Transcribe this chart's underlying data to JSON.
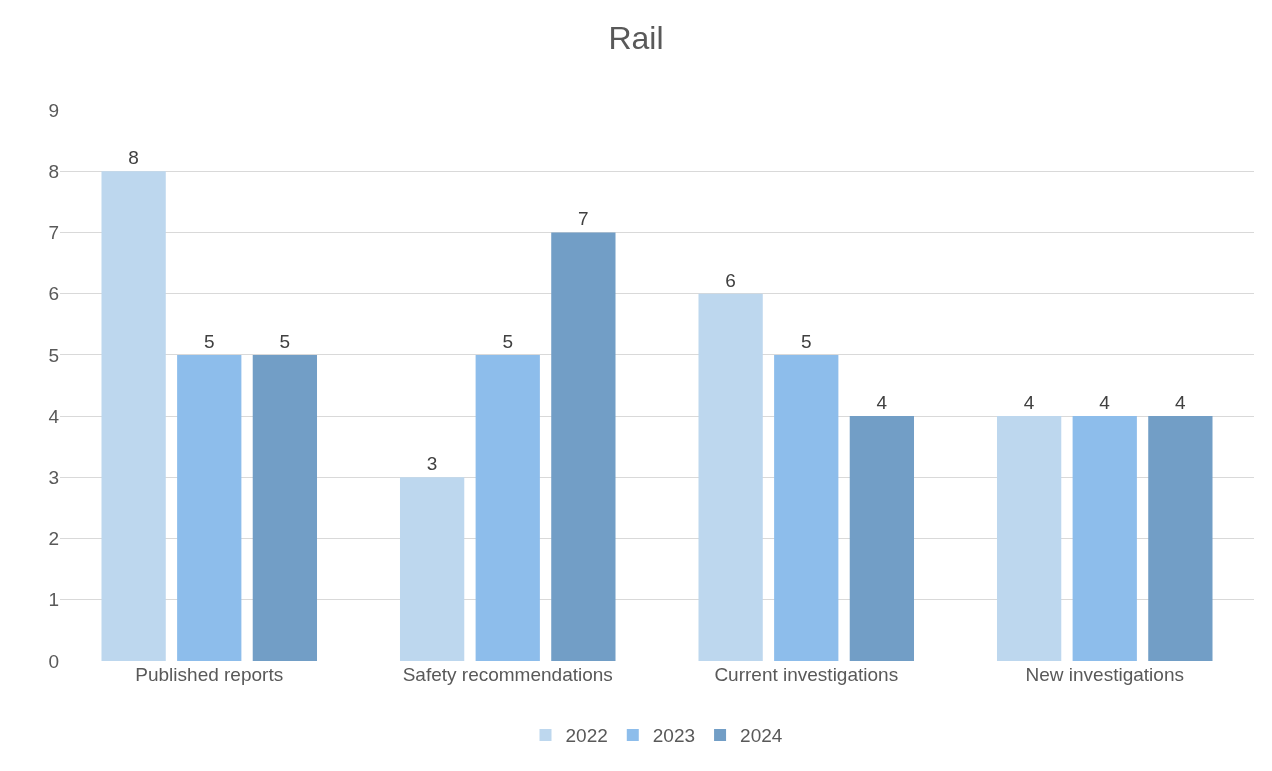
{
  "chart_data": {
    "type": "bar",
    "title": "Rail",
    "categories": [
      "Published reports",
      "Safety recommendations",
      "Current investigations",
      "New investigations"
    ],
    "series": [
      {
        "name": "2022",
        "color": "#bdd7ee",
        "values": [
          8,
          3,
          6,
          4
        ]
      },
      {
        "name": "2023",
        "color": "#8dbdeb",
        "values": [
          5,
          5,
          5,
          4
        ]
      },
      {
        "name": "2024",
        "color": "#729ec6",
        "values": [
          5,
          7,
          4,
          4
        ]
      }
    ],
    "ylim": [
      0,
      9
    ],
    "yticks": [
      0,
      1,
      2,
      3,
      4,
      5,
      6,
      7,
      8,
      9
    ],
    "grid": "y",
    "legend": "bottom",
    "data_labels": true
  }
}
